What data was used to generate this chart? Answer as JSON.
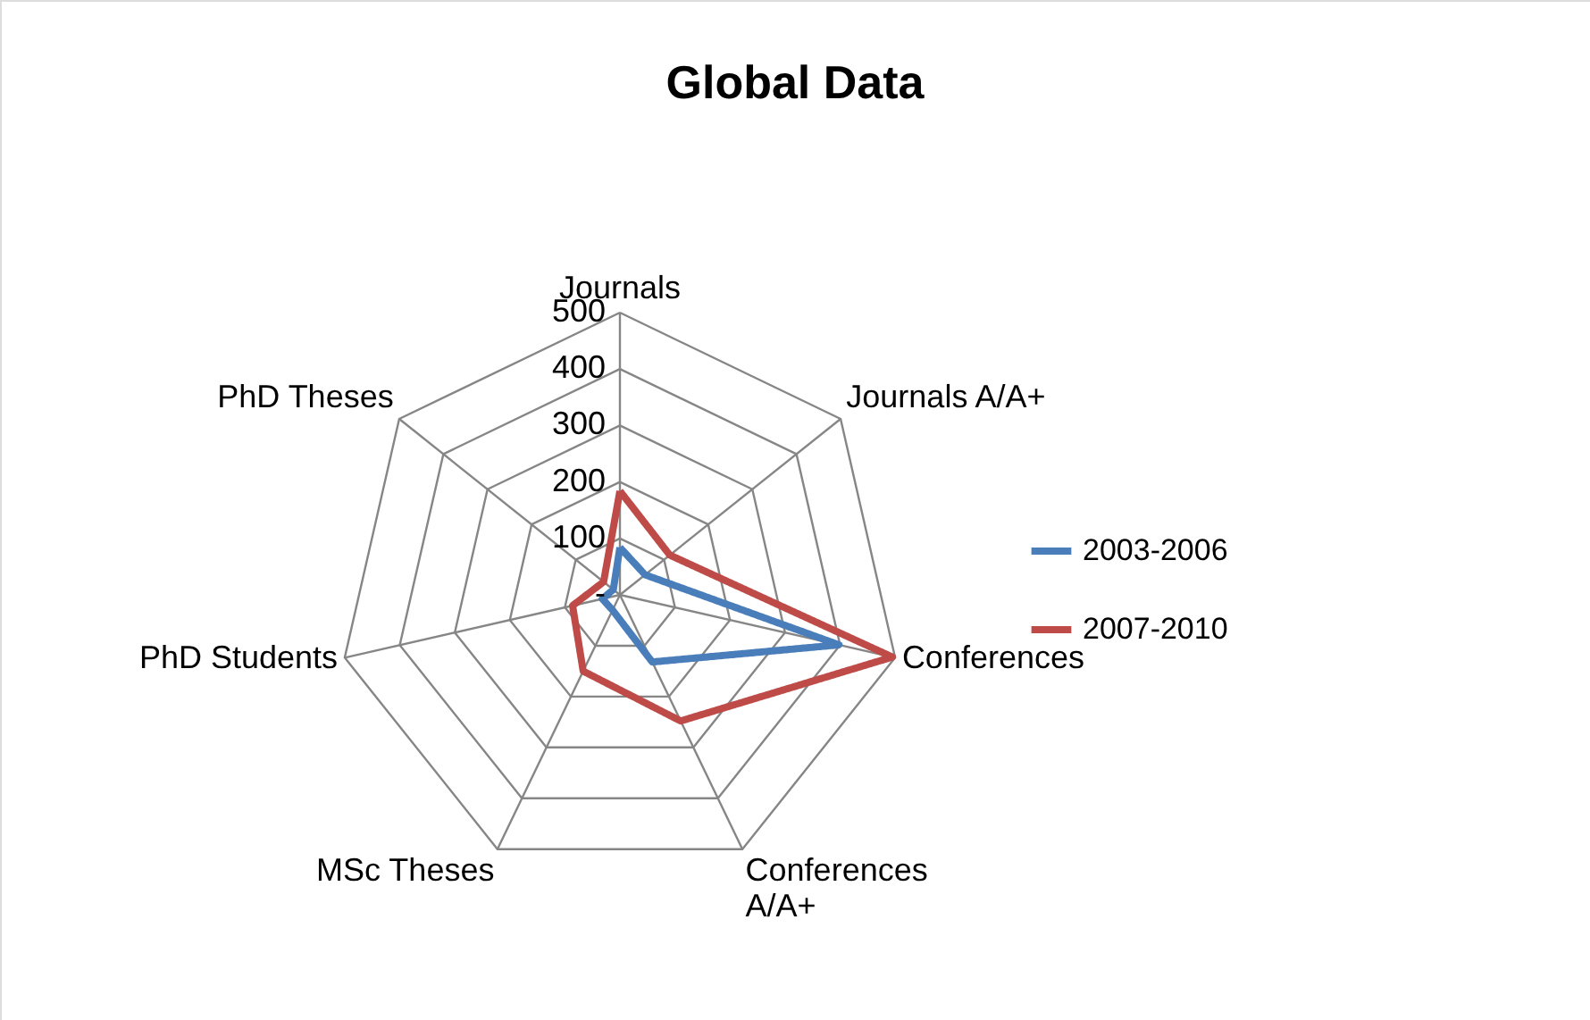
{
  "chart_data": {
    "type": "radar",
    "title": "Global Data",
    "categories": [
      "Journals",
      "Journals A/A+",
      "Conferences",
      "Conferences A/A+",
      "MSc Theses",
      "PhD Students",
      "PhD Theses"
    ],
    "series": [
      {
        "name": "2003-2006",
        "color": "#4a7ebb",
        "values": [
          84,
          57,
          398,
          132,
          30,
          32,
          15
        ]
      },
      {
        "name": "2007-2010",
        "color": "#be4b48",
        "values": [
          184,
          113,
          495,
          248,
          150,
          86,
          37
        ]
      }
    ],
    "ylim": [
      0,
      500
    ],
    "yticks": [
      {
        "value": 0,
        "label": "-"
      },
      100,
      200,
      300,
      400,
      500
    ],
    "grid": true,
    "legend": "right",
    "marker": "none",
    "line_style": "solid"
  }
}
